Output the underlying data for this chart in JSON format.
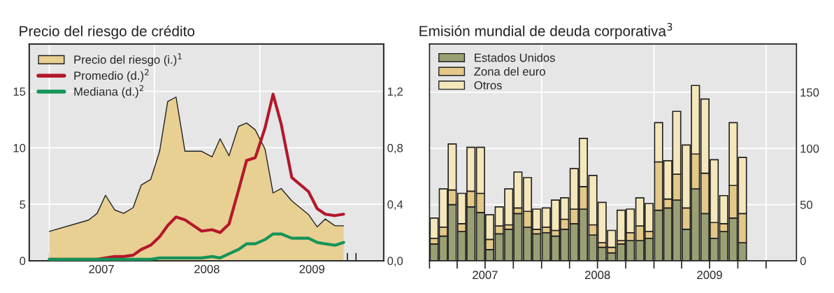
{
  "chart_data": [
    {
      "type": "area",
      "title": "Precio del riesgo de crédito",
      "x": [
        "2007-01-01",
        "2007-05-17",
        "2007-06-16",
        "2007-07-15",
        "2007-08-16",
        "2007-09-16",
        "2007-10-19",
        "2007-11-16",
        "2007-12-19",
        "2008-01-19",
        "2008-02-16",
        "2008-03-16",
        "2008-04-16",
        "2008-06-13",
        "2008-07-19",
        "2008-08-16",
        "2008-09-16",
        "2008-10-19",
        "2008-11-16",
        "2008-12-16",
        "2009-01-19",
        "2009-02-16",
        "2009-03-16",
        "2009-04-22",
        "2009-06-19",
        "2009-07-19",
        "2009-08-16",
        "2009-09-19",
        "2009-10-19"
      ],
      "series": [
        {
          "name": "Precio del riesgo (i.)$^{1}$",
          "type": "area",
          "axis": "y",
          "color": "#e8cf92",
          "values": [
            2.6,
            3.6,
            4.2,
            5.8,
            4.5,
            4.2,
            4.7,
            6.7,
            7.2,
            9.7,
            14.1,
            14.5,
            9.7,
            9.7,
            9.2,
            10.8,
            9.3,
            11.9,
            12.2,
            11.6,
            9.9,
            6.0,
            6.4,
            5.3,
            4.1,
            3.0,
            3.7,
            3.1,
            3.1
          ]
        },
        {
          "name": "Promedio (d.)$^{2}$",
          "type": "line",
          "axis": "y2",
          "color": "#b3182b",
          "values": [
            0.01,
            0.01,
            0.01,
            0.02,
            0.03,
            0.03,
            0.04,
            0.08,
            0.11,
            0.17,
            0.25,
            0.31,
            0.29,
            0.21,
            0.22,
            0.2,
            0.26,
            0.5,
            0.71,
            0.73,
            0.94,
            1.18,
            0.97,
            0.59,
            0.49,
            0.37,
            0.33,
            0.32,
            0.33
          ]
        },
        {
          "name": "Mediana (d.)$^{2}$",
          "type": "line",
          "axis": "y2",
          "color": "#14945a",
          "values": [
            0.01,
            0.01,
            0.01,
            0.01,
            0.01,
            0.01,
            0.01,
            0.01,
            0.01,
            0.02,
            0.02,
            0.02,
            0.02,
            0.02,
            0.03,
            0.02,
            0.05,
            0.08,
            0.12,
            0.12,
            0.15,
            0.19,
            0.19,
            0.16,
            0.16,
            0.13,
            0.12,
            0.11,
            0.13
          ]
        }
      ],
      "xlim": [
        "2006-10-23",
        "2010-03-07"
      ],
      "xticks": [
        {
          "value": "2007-01-01",
          "label": null
        },
        {
          "value": "2007-02-01",
          "label": null
        },
        {
          "value": "2007-03-01",
          "label": null
        },
        {
          "value": "2007-04-01",
          "label": null
        },
        {
          "value": "2007-05-01",
          "label": null
        },
        {
          "value": "2007-06-01",
          "label": null
        },
        {
          "value": "2007-07-01",
          "label": "2007"
        },
        {
          "value": "2007-08-01",
          "label": null
        },
        {
          "value": "2007-09-01",
          "label": null
        },
        {
          "value": "2007-10-01",
          "label": null
        },
        {
          "value": "2007-11-01",
          "label": null
        },
        {
          "value": "2007-12-01",
          "label": null
        },
        {
          "value": "2008-01-01",
          "label": null
        },
        {
          "value": "2008-02-01",
          "label": null
        },
        {
          "value": "2008-03-01",
          "label": null
        },
        {
          "value": "2008-04-01",
          "label": null
        },
        {
          "value": "2008-05-01",
          "label": null
        },
        {
          "value": "2008-06-01",
          "label": null
        },
        {
          "value": "2008-07-01",
          "label": "2008"
        },
        {
          "value": "2008-08-01",
          "label": null
        },
        {
          "value": "2008-09-01",
          "label": null
        },
        {
          "value": "2008-10-01",
          "label": null
        },
        {
          "value": "2008-11-01",
          "label": null
        },
        {
          "value": "2008-12-01",
          "label": null
        },
        {
          "value": "2009-01-01",
          "label": null
        },
        {
          "value": "2009-02-01",
          "label": null
        },
        {
          "value": "2009-03-01",
          "label": null
        },
        {
          "value": "2009-04-01",
          "label": null
        },
        {
          "value": "2009-05-01",
          "label": null
        },
        {
          "value": "2009-06-01",
          "label": null
        },
        {
          "value": "2009-07-01",
          "label": "2009"
        },
        {
          "value": "2009-08-01",
          "label": null
        },
        {
          "value": "2009-09-01",
          "label": null
        },
        {
          "value": "2009-10-01",
          "label": null
        },
        {
          "value": "2009-11-01",
          "label": null
        },
        {
          "value": "2009-12-01",
          "label": null
        }
      ],
      "ylim": [
        0,
        19.2
      ],
      "yticks": [
        0,
        5,
        10,
        15
      ],
      "y2lim": [
        0,
        1.536
      ],
      "y2ticks": [
        {
          "value": 0,
          "label": "0,0"
        },
        {
          "value": 0.4,
          "label": "0,4"
        },
        {
          "value": 0.8,
          "label": "0,8"
        },
        {
          "value": 1.2,
          "label": "1,2"
        }
      ],
      "ref_lines": [
        {
          "axis": "x",
          "value": "2007-01-01",
          "color": "#ffffff"
        },
        {
          "axis": "x",
          "value": "2008-01-01",
          "color": "#ffffff"
        },
        {
          "axis": "x",
          "value": "2009-01-01",
          "color": "#ffffff"
        }
      ],
      "grid": "y",
      "legend": "top left"
    },
    {
      "type": "bar",
      "stacked": true,
      "title": "Emisión mundial de deuda corporativa$^{3}$",
      "x": [
        "2007-01-16",
        "2007-02-15",
        "2007-03-16",
        "2007-04-16",
        "2007-05-16",
        "2007-06-16",
        "2007-07-16",
        "2007-08-16",
        "2007-09-16",
        "2007-10-16",
        "2007-11-16",
        "2007-12-16",
        "2008-01-16",
        "2008-02-15",
        "2008-03-16",
        "2008-04-16",
        "2008-05-16",
        "2008-06-16",
        "2008-07-16",
        "2008-08-16",
        "2008-09-16",
        "2008-10-16",
        "2008-11-16",
        "2008-12-16",
        "2009-01-16",
        "2009-02-15",
        "2009-03-16",
        "2009-04-16",
        "2009-05-16",
        "2009-06-16",
        "2009-07-16",
        "2009-08-16",
        "2009-09-16",
        "2009-10-16"
      ],
      "series": [
        {
          "name": "Estados Unidos",
          "color": "#9aa073",
          "values": [
            15,
            22,
            50,
            26,
            48,
            43,
            10,
            24,
            28,
            42,
            30,
            24,
            25,
            22,
            28,
            33,
            46,
            23,
            12,
            7,
            15,
            18,
            18,
            20,
            45,
            47,
            54,
            28,
            64,
            42,
            20,
            26,
            38,
            16
          ]
        },
        {
          "name": "Zona del euro",
          "color": "#e4c888",
          "values": [
            5,
            8,
            13,
            7,
            14,
            17,
            9,
            7,
            4,
            5,
            14,
            4,
            5,
            5,
            9,
            13,
            20,
            9,
            4,
            5,
            3,
            7,
            13,
            6,
            43,
            8,
            23,
            19,
            31,
            36,
            14,
            7,
            29,
            26
          ]
        },
        {
          "name": "Otros",
          "color": "#f5e7bc",
          "values": [
            18,
            34,
            41,
            27,
            39,
            41,
            22,
            17,
            32,
            32,
            30,
            18,
            17,
            27,
            19,
            36,
            43,
            44,
            36,
            15,
            27,
            21,
            25,
            25,
            35,
            34,
            56,
            56,
            61,
            66,
            56,
            25,
            56,
            50
          ]
        }
      ],
      "xlim": [
        "2007-01-01",
        "2010-04-10"
      ],
      "xticks": [
        {
          "value": "2007-01-01",
          "label": null
        },
        {
          "value": "2007-04-01",
          "label": null
        },
        {
          "value": "2007-07-01",
          "label": "2007"
        },
        {
          "value": "2007-10-01",
          "label": null
        },
        {
          "value": "2008-01-01",
          "label": null
        },
        {
          "value": "2008-04-01",
          "label": null
        },
        {
          "value": "2008-07-01",
          "label": "2008"
        },
        {
          "value": "2008-10-01",
          "label": null
        },
        {
          "value": "2009-01-01",
          "label": null
        },
        {
          "value": "2009-04-01",
          "label": null
        },
        {
          "value": "2009-07-01",
          "label": "2009"
        },
        {
          "value": "2009-10-01",
          "label": null
        },
        {
          "value": "2010-01-01",
          "label": null
        }
      ],
      "ylim": [
        0,
        193
      ],
      "yticks": [
        0,
        50,
        100,
        150
      ],
      "ref_lines": [
        {
          "axis": "x",
          "value": "2008-01-01",
          "color": "#ffffff"
        },
        {
          "axis": "x",
          "value": "2009-01-01",
          "color": "#ffffff"
        },
        {
          "axis": "x",
          "value": "2010-01-01",
          "color": "#ffffff"
        }
      ],
      "grid": "y",
      "legend": "top left"
    }
  ]
}
